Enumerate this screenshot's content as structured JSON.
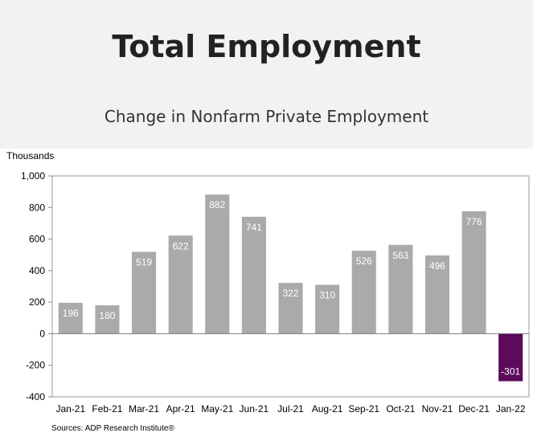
{
  "header": {
    "title": "Total Employment",
    "subtitle": "Change in Nonfarm Private Employment"
  },
  "chart_data": {
    "type": "bar",
    "ylabel": "Thousands",
    "source": "Sources: ADP Research Institute®",
    "categories": [
      "Jan-21",
      "Feb-21",
      "Mar-21",
      "Apr-21",
      "May-21",
      "Jun-21",
      "Jul-21",
      "Aug-21",
      "Sep-21",
      "Oct-21",
      "Nov-21",
      "Dec-21",
      "Jan-22"
    ],
    "values": [
      196,
      180,
      519,
      622,
      882,
      741,
      322,
      310,
      526,
      563,
      496,
      776,
      -301
    ],
    "ylim": [
      -400,
      1000
    ],
    "yticks": [
      -400,
      -200,
      0,
      200,
      400,
      600,
      800,
      1000
    ],
    "ytick_labels": [
      "-400",
      "-200",
      "0",
      "200",
      "400",
      "600",
      "800",
      "1,000"
    ],
    "grid": false,
    "colors": {
      "default_bar": "#aaaaaa",
      "highlight_bar": "#5c0a5a",
      "bar_label": "#ffffff"
    },
    "highlight_index": 12
  }
}
